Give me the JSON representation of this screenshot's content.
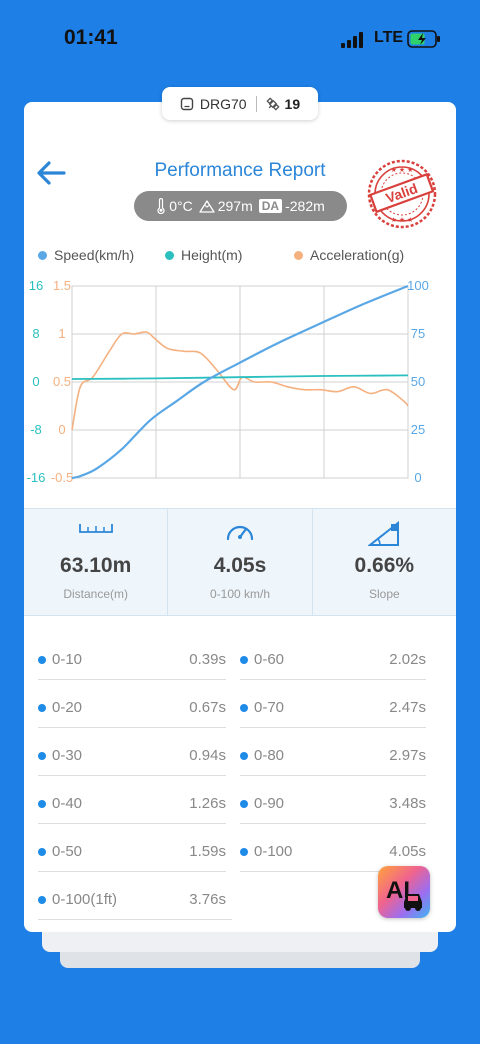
{
  "status_bar": {
    "time": "01:41",
    "network": "LTE"
  },
  "device": {
    "name": "DRG70",
    "satellites": "19"
  },
  "header": {
    "title": "Performance Report",
    "stamp": "Valid"
  },
  "conditions": {
    "temperature": "0°C",
    "altitude": "297m",
    "da_label": "DA",
    "density_altitude": "-282m"
  },
  "colors": {
    "speed": "#5aa7e6",
    "height": "#2bbfbf",
    "accel": "#f5b07f",
    "accent": "#2b86d8"
  },
  "chart_data": {
    "type": "line",
    "legend": [
      "Speed(km/h)",
      "Height(m)",
      "Acceleration(g)"
    ],
    "axes": {
      "height_ticks": [
        "16",
        "8",
        "0",
        "-8",
        "-16"
      ],
      "accel_ticks": [
        "1.5",
        "1",
        "0.5",
        "0",
        "-0.5"
      ],
      "speed_ticks": [
        "100",
        "75",
        "50",
        "25",
        "0"
      ]
    },
    "speed_range": [
      0,
      100
    ],
    "height_range": [
      -16,
      16
    ],
    "accel_range": [
      -0.5,
      1.5
    ],
    "time_range": [
      0,
      4.05
    ],
    "series": [
      {
        "name": "Speed(km/h)",
        "axis": "speed",
        "x": [
          0,
          0.1,
          0.3,
          0.6,
          0.94,
          1.26,
          1.59,
          2.02,
          2.47,
          2.97,
          3.48,
          4.05
        ],
        "y": [
          0,
          1,
          5,
          15,
          30,
          40,
          50,
          60,
          70,
          80,
          90,
          100
        ]
      },
      {
        "name": "Height(m)",
        "axis": "height",
        "x": [
          0,
          1,
          2,
          3,
          4.05
        ],
        "y": [
          0.5,
          0.6,
          0.8,
          1.0,
          1.1
        ]
      },
      {
        "name": "Acceleration(g)",
        "axis": "accel",
        "x": [
          0,
          0.1,
          0.25,
          0.45,
          0.6,
          0.75,
          0.9,
          1.0,
          1.15,
          1.35,
          1.55,
          1.75,
          1.95,
          2.05,
          2.2,
          2.4,
          2.6,
          2.8,
          3.0,
          3.2,
          3.4,
          3.6,
          3.8,
          4.0,
          4.05
        ],
        "y": [
          0.0,
          0.45,
          0.55,
          0.82,
          1.0,
          1.0,
          1.02,
          0.95,
          0.85,
          0.82,
          0.8,
          0.62,
          0.42,
          0.55,
          0.5,
          0.5,
          0.45,
          0.42,
          0.42,
          0.4,
          0.45,
          0.38,
          0.42,
          0.3,
          0.25
        ]
      }
    ]
  },
  "stats": [
    {
      "icon": "ruler-icon",
      "value": "63.10m",
      "label": "Distance(m)"
    },
    {
      "icon": "speedometer-icon",
      "value": "4.05s",
      "label": "0-100 km/h"
    },
    {
      "icon": "slope-icon",
      "value": "0.66%",
      "label": "Slope"
    }
  ],
  "times_left": [
    {
      "label": "0-10",
      "value": "0.39s"
    },
    {
      "label": "0-20",
      "value": "0.67s"
    },
    {
      "label": "0-30",
      "value": "0.94s"
    },
    {
      "label": "0-40",
      "value": "1.26s"
    },
    {
      "label": "0-50",
      "value": "1.59s"
    },
    {
      "label": "0-100(1ft)",
      "value": "3.76s"
    }
  ],
  "times_right": [
    {
      "label": "0-60",
      "value": "2.02s"
    },
    {
      "label": "0-70",
      "value": "2.47s"
    },
    {
      "label": "0-80",
      "value": "2.97s"
    },
    {
      "label": "0-90",
      "value": "3.48s"
    },
    {
      "label": "0-100",
      "value": "4.05s"
    }
  ],
  "ai_button": {
    "label": "AI"
  }
}
